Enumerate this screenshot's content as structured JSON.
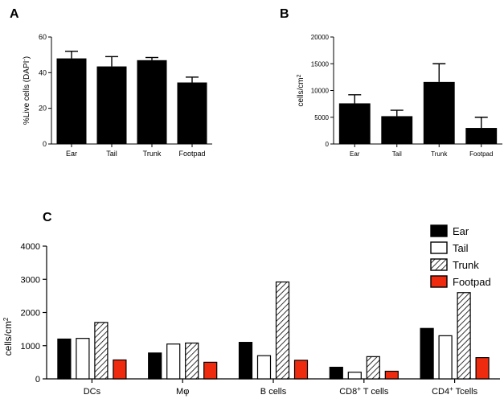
{
  "colors": {
    "ear": "#000000",
    "tail": "#ffffff",
    "trunk": "hatch",
    "footpad": "#ee2b0f",
    "axis": "#000000"
  },
  "chart_data": [
    {
      "panel": "A",
      "type": "bar",
      "categories": [
        "Ear",
        "Tail",
        "Trunk",
        "Footpad"
      ],
      "values": [
        48,
        43.5,
        47,
        34.5
      ],
      "error_upper": [
        52,
        49,
        48.5,
        37.5
      ],
      "ylabel_prefix": "%Live cells (DAPI",
      "ylabel_sup": "-",
      "ylabel_suffix": ")",
      "ylim": [
        0,
        60
      ],
      "yticks": [
        0,
        20,
        40,
        60
      ],
      "ytick_labels": [
        "0",
        "20",
        "40",
        "60"
      ]
    },
    {
      "panel": "B",
      "type": "bar",
      "categories": [
        "Ear",
        "Tail",
        "Trunk",
        "Footpad"
      ],
      "values": [
        7600,
        5200,
        11600,
        3000
      ],
      "error_upper": [
        9200,
        6300,
        15000,
        5000
      ],
      "ylabel_prefix": "cells/cm",
      "ylabel_sup": "2",
      "ylim": [
        0,
        20000
      ],
      "yticks": [
        0,
        5000,
        10000,
        15000,
        20000
      ],
      "ytick_labels": [
        "0",
        "5000",
        "10000",
        "15000",
        "20000"
      ]
    },
    {
      "panel": "C",
      "type": "bar",
      "categories": [
        {
          "main": "DCs",
          "sup": "",
          "rest": ""
        },
        {
          "main": "Mφ",
          "sup": "",
          "rest": ""
        },
        {
          "main": "B cells",
          "sup": "",
          "rest": ""
        },
        {
          "main": "CD8",
          "sup": "+",
          "rest": " T cells"
        },
        {
          "main": "CD4",
          "sup": "+",
          "rest": " Tcells"
        }
      ],
      "series": [
        {
          "name": "Ear",
          "key": "ear",
          "values": [
            1200,
            780,
            1100,
            350,
            1520
          ]
        },
        {
          "name": "Tail",
          "key": "tail",
          "values": [
            1220,
            1050,
            700,
            200,
            1300
          ]
        },
        {
          "name": "Trunk",
          "key": "trunk",
          "values": [
            1700,
            1080,
            2920,
            670,
            2600
          ]
        },
        {
          "name": "Footpad",
          "key": "footpad",
          "values": [
            570,
            500,
            560,
            230,
            640
          ]
        }
      ],
      "ylabel_prefix": "cells/cm",
      "ylabel_sup": "2",
      "ylim": [
        0,
        4000
      ],
      "yticks": [
        0,
        1000,
        2000,
        3000,
        4000
      ],
      "ytick_labels": [
        "0",
        "1000",
        "2000",
        "3000",
        "4000"
      ],
      "legend_position": "top-right"
    }
  ]
}
